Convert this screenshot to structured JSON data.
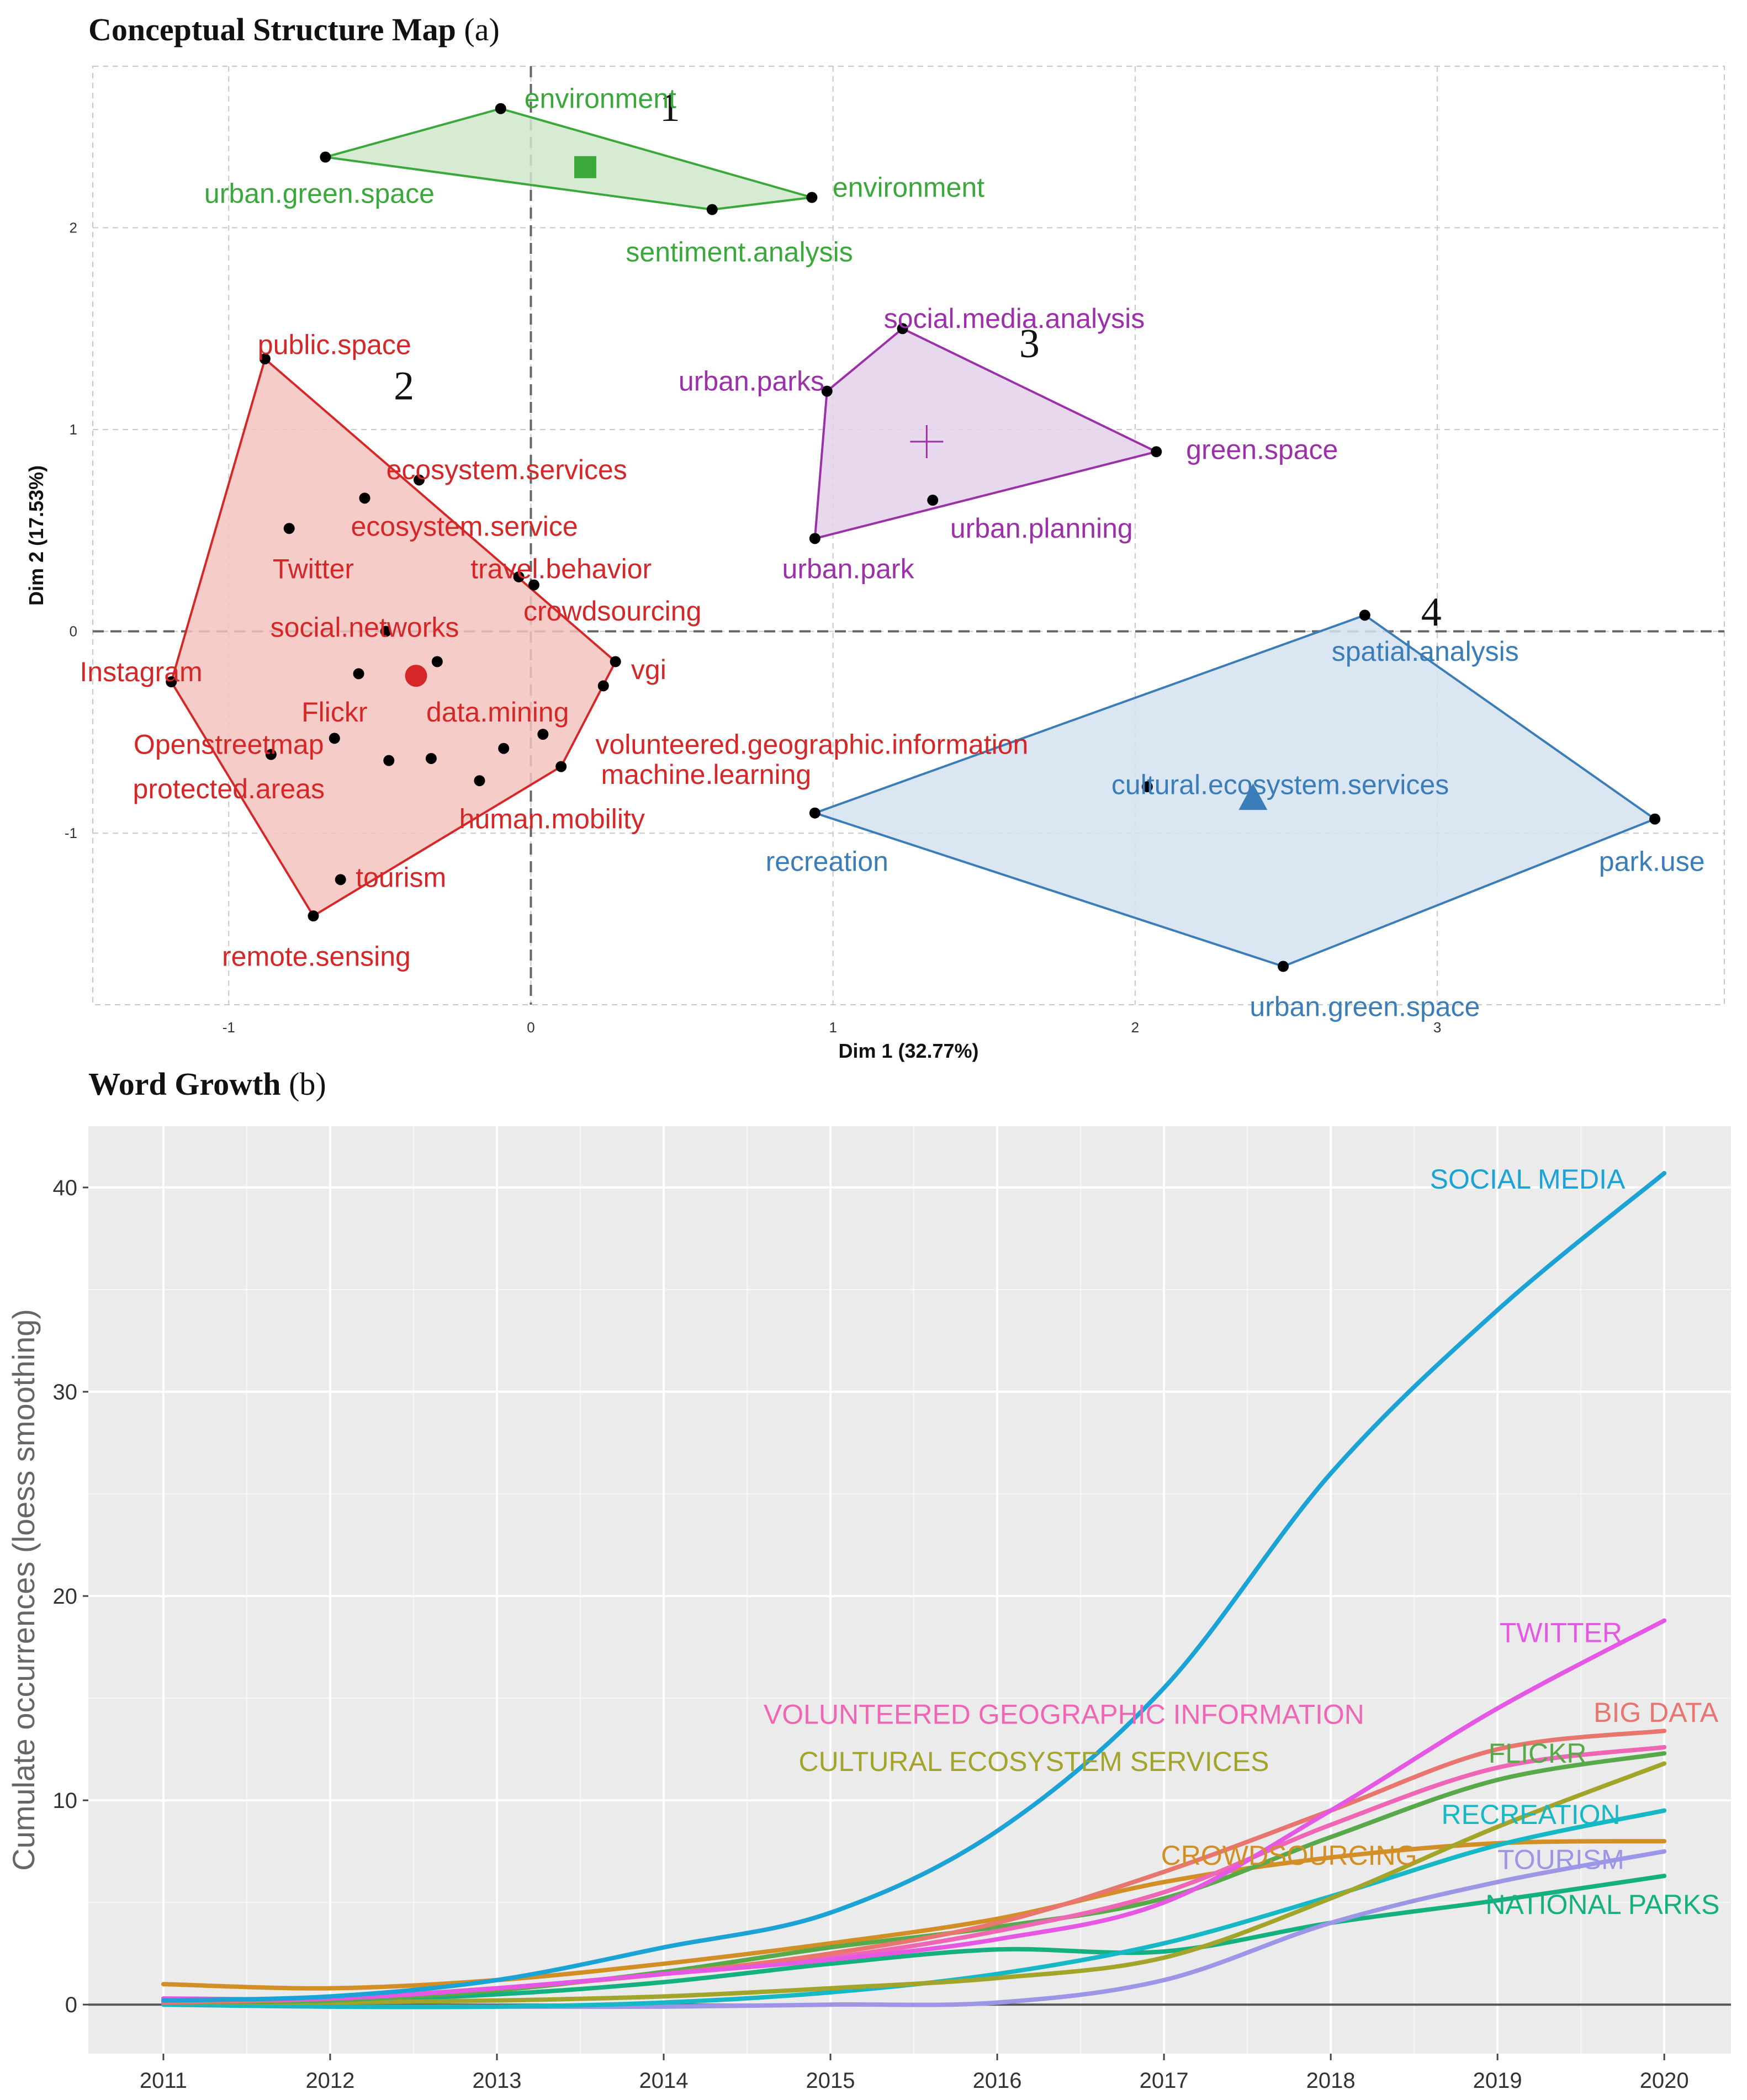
{
  "captions": {
    "a_title": "Conceptual Structure Map",
    "a_tag": "(a)",
    "b_title": "Word Growth",
    "b_tag": "(b)"
  },
  "chart_data": [
    {
      "type": "scatter",
      "title": "Conceptual Structure Map",
      "xlabel": "Dim 1 (32.77%)",
      "ylabel": "Dim 2 (17.53%)",
      "xlim": [
        -1.45,
        3.95
      ],
      "ylim": [
        -1.85,
        2.8
      ],
      "xticks": [
        -1,
        0,
        1,
        2,
        3
      ],
      "yticks": [
        -1,
        0,
        1,
        2
      ],
      "clusters": [
        {
          "id": "1",
          "color": "#3aa83a",
          "fill": "#cfe8c9",
          "hull": [
            [
              -0.68,
              2.35
            ],
            [
              -0.1,
              2.59
            ],
            [
              0.93,
              2.15
            ],
            [
              0.6,
              2.09
            ]
          ],
          "centroid": [
            0.18,
            2.3
          ],
          "marker": "square",
          "number_at": [
            0.46,
            2.6
          ],
          "points": [
            {
              "x": -0.1,
              "y": 2.59,
              "label": "environment",
              "tx": 0.23,
              "ty": 2.64,
              "anchor": "middle"
            },
            {
              "x": -0.68,
              "y": 2.35,
              "label": "urban.green.space",
              "tx": -0.7,
              "ty": 2.17,
              "anchor": "middle"
            },
            {
              "x": 0.93,
              "y": 2.15,
              "label": "environment",
              "tx": 1.25,
              "ty": 2.2,
              "anchor": "middle"
            },
            {
              "x": 0.6,
              "y": 2.09,
              "label": "sentiment.analysis",
              "tx": 0.69,
              "ty": 1.88,
              "anchor": "middle"
            }
          ]
        },
        {
          "id": "2",
          "color": "#d62728",
          "fill": "#f4c3c0",
          "hull": [
            [
              -0.88,
              1.35
            ],
            [
              0.28,
              -0.15
            ],
            [
              0.1,
              -0.67
            ],
            [
              -0.72,
              -1.41
            ],
            [
              -1.19,
              -0.25
            ]
          ],
          "centroid": [
            -0.38,
            -0.22
          ],
          "marker": "circle",
          "number_at": [
            -0.42,
            1.22
          ],
          "points": [
            {
              "x": -0.88,
              "y": 1.35,
              "label": "public.space",
              "tx": -0.65,
              "ty": 1.42,
              "anchor": "middle"
            },
            {
              "x": -0.37,
              "y": 0.75,
              "label": "ecosystem.services",
              "tx": -0.08,
              "ty": 0.8,
              "anchor": "middle"
            },
            {
              "x": -0.55,
              "y": 0.66,
              "label": "ecosystem.service",
              "tx": -0.22,
              "ty": 0.52,
              "anchor": "middle"
            },
            {
              "x": -0.8,
              "y": 0.51,
              "label": "Twitter",
              "tx": -0.72,
              "ty": 0.31,
              "anchor": "middle"
            },
            {
              "x": -0.04,
              "y": 0.27,
              "label": "travel.behavior",
              "tx": 0.1,
              "ty": 0.31,
              "anchor": "middle"
            },
            {
              "x": 0.01,
              "y": 0.23,
              "label": "crowdsourcing",
              "tx": 0.27,
              "ty": 0.1,
              "anchor": "middle"
            },
            {
              "x": -0.48,
              "y": 0.0,
              "label": "social.networks",
              "tx": -0.55,
              "ty": 0.02,
              "anchor": "middle"
            },
            {
              "x": -1.19,
              "y": -0.25,
              "label": "Instagram",
              "tx": -1.29,
              "ty": -0.2,
              "anchor": "middle"
            },
            {
              "x": -0.57,
              "y": -0.21,
              "label": "Flickr",
              "tx": -0.65,
              "ty": -0.4,
              "anchor": "middle"
            },
            {
              "x": -0.31,
              "y": -0.15,
              "label": "data.mining",
              "tx": -0.11,
              "ty": -0.4,
              "anchor": "middle"
            },
            {
              "x": 0.28,
              "y": -0.15,
              "label": "vgi",
              "tx": 0.39,
              "ty": -0.19,
              "anchor": "middle"
            },
            {
              "x": 0.24,
              "y": -0.27,
              "label": "",
              "tx": 0,
              "ty": 0,
              "anchor": "middle"
            },
            {
              "x": -0.65,
              "y": -0.53,
              "label": "Openstreetmap",
              "tx": -1.0,
              "ty": -0.56,
              "anchor": "middle"
            },
            {
              "x": 0.04,
              "y": -0.51,
              "label": "volunteered.geographic.information",
              "tx": 0.93,
              "ty": -0.56,
              "anchor": "middle"
            },
            {
              "x": -0.86,
              "y": -0.61,
              "label": "protected.areas",
              "tx": -1.0,
              "ty": -0.78,
              "anchor": "middle"
            },
            {
              "x": -0.47,
              "y": -0.64,
              "label": "",
              "tx": 0,
              "ty": 0,
              "anchor": "middle"
            },
            {
              "x": -0.33,
              "y": -0.63,
              "label": "",
              "tx": 0,
              "ty": 0,
              "anchor": "middle"
            },
            {
              "x": -0.09,
              "y": -0.58,
              "label": "",
              "tx": 0,
              "ty": 0,
              "anchor": "middle"
            },
            {
              "x": 0.1,
              "y": -0.67,
              "label": "machine.learning",
              "tx": 0.58,
              "ty": -0.71,
              "anchor": "middle"
            },
            {
              "x": -0.17,
              "y": -0.74,
              "label": "human.mobility",
              "tx": 0.07,
              "ty": -0.93,
              "anchor": "middle"
            },
            {
              "x": -0.63,
              "y": -1.23,
              "label": "tourism",
              "tx": -0.43,
              "ty": -1.22,
              "anchor": "middle"
            },
            {
              "x": -0.72,
              "y": -1.41,
              "label": "remote.sensing",
              "tx": -0.71,
              "ty": -1.61,
              "anchor": "middle"
            }
          ]
        },
        {
          "id": "3",
          "color": "#9b30a8",
          "fill": "#e3d1ea",
          "hull": [
            [
              1.23,
              1.5
            ],
            [
              2.07,
              0.89
            ],
            [
              0.94,
              0.46
            ],
            [
              0.98,
              1.19
            ]
          ],
          "centroid": [
            1.31,
            0.94
          ],
          "marker": "plus",
          "number_at": [
            1.65,
            1.43
          ],
          "points": [
            {
              "x": 1.23,
              "y": 1.5,
              "label": "social.media.analysis",
              "tx": 1.6,
              "ty": 1.55,
              "anchor": "middle"
            },
            {
              "x": 0.98,
              "y": 1.19,
              "label": "urban.parks",
              "tx": 0.73,
              "ty": 1.24,
              "anchor": "middle"
            },
            {
              "x": 2.07,
              "y": 0.89,
              "label": "green.space",
              "tx": 2.42,
              "ty": 0.9,
              "anchor": "middle"
            },
            {
              "x": 1.33,
              "y": 0.65,
              "label": "urban.planning",
              "tx": 1.69,
              "ty": 0.51,
              "anchor": "middle"
            },
            {
              "x": 0.94,
              "y": 0.46,
              "label": "urban.park",
              "tx": 1.05,
              "ty": 0.31,
              "anchor": "middle"
            }
          ]
        },
        {
          "id": "4",
          "color": "#3a7db8",
          "fill": "#d3e2ef",
          "hull": [
            [
              2.76,
              0.08
            ],
            [
              3.72,
              -0.93
            ],
            [
              2.49,
              -1.66
            ],
            [
              0.94,
              -0.9
            ]
          ],
          "centroid": [
            2.39,
            -0.83
          ],
          "marker": "triangle",
          "number_at": [
            2.98,
            0.1
          ],
          "points": [
            {
              "x": 2.76,
              "y": 0.08,
              "label": "spatial.analysis",
              "tx": 2.96,
              "ty": -0.1,
              "anchor": "middle"
            },
            {
              "x": 2.04,
              "y": -0.77,
              "label": "cultural.ecosystem.services",
              "tx": 2.48,
              "ty": -0.76,
              "anchor": "middle"
            },
            {
              "x": 0.94,
              "y": -0.9,
              "label": "recreation",
              "tx": 0.98,
              "ty": -1.14,
              "anchor": "middle"
            },
            {
              "x": 3.72,
              "y": -0.93,
              "label": "park.use",
              "tx": 3.71,
              "ty": -1.14,
              "anchor": "middle"
            },
            {
              "x": 2.49,
              "y": -1.66,
              "label": "urban.green.space",
              "tx": 2.76,
              "ty": -1.86,
              "anchor": "middle"
            }
          ]
        }
      ]
    },
    {
      "type": "line",
      "title": "Word Growth",
      "xlabel": "",
      "ylabel": "Cumulate occurrences (loess smoothing)",
      "xlim": [
        2010.55,
        2020.4
      ],
      "ylim": [
        -2.4,
        43
      ],
      "xticks": [
        2011,
        2012,
        2013,
        2014,
        2015,
        2016,
        2017,
        2018,
        2019,
        2020
      ],
      "yticks": [
        0,
        10,
        20,
        30,
        40
      ],
      "x": [
        2011,
        2012,
        2013,
        2014,
        2015,
        2016,
        2017,
        2018,
        2019,
        2020
      ],
      "series": [
        {
          "name": "SOCIAL MEDIA",
          "color": "#1ba3d6",
          "values": [
            0.2,
            0.4,
            1.2,
            2.8,
            4.5,
            8.5,
            15.5,
            26,
            34,
            40.7
          ],
          "label_x": 2019.18,
          "label_y": 40.4
        },
        {
          "name": "TWITTER",
          "color": "#e458e4",
          "values": [
            0.3,
            0.3,
            0.8,
            1.5,
            2.2,
            3.2,
            5.0,
            9.5,
            14.5,
            18.8
          ],
          "label_x": 2019.38,
          "label_y": 18.2
        },
        {
          "name": "BIG DATA",
          "color": "#e8766f",
          "values": [
            0.1,
            0.3,
            0.8,
            1.5,
            2.5,
            4.0,
            6.5,
            9.5,
            12.5,
            13.4
          ],
          "label_x": 2019.95,
          "label_y": 14.3
        },
        {
          "name": "VOLUNTEERED GEOGRAPHIC INFORMATION",
          "color": "#ef66b4",
          "values": [
            0.2,
            0.3,
            0.8,
            1.5,
            2.3,
            3.6,
            5.5,
            8.8,
            11.6,
            12.6
          ],
          "label_x": 2016.4,
          "label_y": 14.2
        },
        {
          "name": "FLICKR",
          "color": "#58a94a",
          "values": [
            0.1,
            0.2,
            0.7,
            1.6,
            2.8,
            3.8,
            5.2,
            8.2,
            11.0,
            12.3
          ],
          "label_x": 2019.24,
          "label_y": 12.3
        },
        {
          "name": "CULTURAL ECOSYSTEM SERVICES",
          "color": "#a3a52b",
          "values": [
            0.1,
            0.1,
            0.2,
            0.4,
            0.8,
            1.3,
            2.3,
            5.2,
            8.7,
            11.8
          ],
          "label_x": 2016.22,
          "label_y": 11.9
        },
        {
          "name": "RECREATION",
          "color": "#17b8c6",
          "values": [
            0,
            -0.1,
            -0.1,
            0.1,
            0.6,
            1.5,
            3.0,
            5.3,
            7.8,
            9.5
          ],
          "label_x": 2019.2,
          "label_y": 9.3
        },
        {
          "name": "CROWDSOURCING",
          "color": "#d28f26",
          "values": [
            1.0,
            0.8,
            1.2,
            2.0,
            3.0,
            4.2,
            6.0,
            7.2,
            7.9,
            8.0
          ],
          "label_x": 2017.75,
          "label_y": 7.3
        },
        {
          "name": "TOURISM",
          "color": "#9d95e6",
          "values": [
            0,
            -0.1,
            -0.1,
            -0.1,
            0,
            0.1,
            1.2,
            4.0,
            6.0,
            7.5
          ],
          "label_x": 2019.38,
          "label_y": 7.1
        },
        {
          "name": "NATIONAL PARKS",
          "color": "#14b07f",
          "values": [
            0.1,
            0.2,
            0.5,
            1.1,
            2.0,
            2.7,
            2.6,
            4.0,
            5.1,
            6.3
          ],
          "label_x": 2019.63,
          "label_y": 4.9
        }
      ]
    }
  ]
}
